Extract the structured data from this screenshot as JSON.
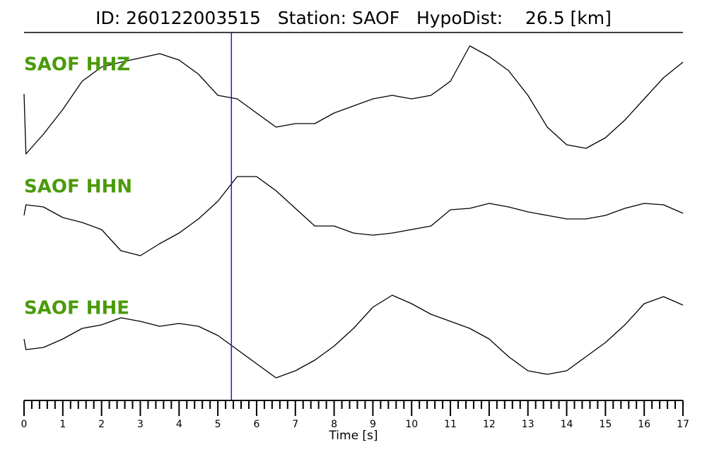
{
  "chart_data": {
    "type": "line",
    "title": "ID: 260122003515   Station: SAOF   HypoDist:    26.5 [km]",
    "xlabel": "Time [s]",
    "x": [
      0,
      0.05,
      0.5,
      1,
      1.5,
      2,
      2.5,
      3,
      3.5,
      4,
      4.5,
      5,
      5.5,
      6,
      6.5,
      7,
      7.5,
      8,
      8.5,
      9,
      9.5,
      10,
      10.5,
      11,
      11.5,
      12,
      12.5,
      13,
      13.5,
      14,
      14.5,
      15,
      15.5,
      16,
      16.5,
      17
    ],
    "xlim": [
      0,
      17
    ],
    "xticks": [
      0,
      1,
      2,
      3,
      4,
      5,
      6,
      7,
      8,
      9,
      10,
      11,
      12,
      13,
      14,
      15,
      16,
      17
    ],
    "minor_per_major": 5,
    "marker_x": 5.35,
    "marker_color": "#1a1adc",
    "label_color": "#4a9a0a",
    "series": [
      {
        "name": "SAOF HHZ",
        "color": "#000000",
        "ylim": [
          -85,
          85
        ],
        "values": [
          4,
          -81,
          -53,
          -18,
          22,
          42,
          49,
          55,
          61,
          52,
          32,
          2,
          -3,
          -23,
          -43,
          -38,
          -38,
          -23,
          -13,
          -3,
          2,
          -3,
          2,
          22,
          72,
          57,
          37,
          2,
          -43,
          -68,
          -73,
          -58,
          -33,
          -3,
          27,
          49
        ]
      },
      {
        "name": "SAOF HHN",
        "color": "#000000",
        "ylim": [
          -85,
          85
        ],
        "values": [
          -13,
          2,
          -1,
          -16,
          -23,
          -33,
          -63,
          -70,
          -53,
          -38,
          -18,
          7,
          42,
          42,
          22,
          -3,
          -28,
          -28,
          -38,
          -41,
          -38,
          -33,
          -28,
          -5,
          -3,
          4,
          -1,
          -8,
          -13,
          -18,
          -18,
          -13,
          -3,
          4,
          2,
          -10
        ]
      },
      {
        "name": "SAOF HHE",
        "color": "#000000",
        "ylim": [
          -85,
          85
        ],
        "values": [
          -2,
          -17,
          -14,
          -2,
          13,
          18,
          28,
          23,
          16,
          20,
          16,
          3,
          -17,
          -37,
          -57,
          -47,
          -32,
          -12,
          13,
          43,
          60,
          48,
          33,
          23,
          13,
          -2,
          -27,
          -47,
          -52,
          -47,
          -27,
          -7,
          18,
          48,
          58,
          46
        ]
      }
    ]
  }
}
